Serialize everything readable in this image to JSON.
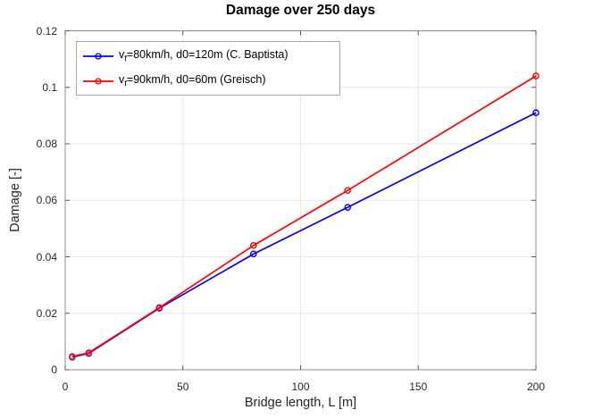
{
  "colors": {
    "background": "#ffffff",
    "grid": "#e8e8e8",
    "axis_box": "#8f8f8f",
    "tick": "#595959",
    "tick_label": "#262626",
    "blue_series": "#0000ff",
    "red_series": "#ff0000",
    "legend_border": "#a6a6a6"
  },
  "chart_data": {
    "type": "line",
    "title": "Damage over 250 days",
    "xlabel": "Bridge length, L [m]",
    "ylabel": "Damage [-]",
    "xlim": [
      0,
      200
    ],
    "ylim": [
      0,
      0.12
    ],
    "x_ticks": [
      0,
      50,
      100,
      150,
      200
    ],
    "x_tick_labels": [
      "0",
      "50",
      "100",
      "150",
      "200"
    ],
    "y_ticks": [
      0,
      0.02,
      0.04,
      0.06,
      0.08,
      0.1,
      0.12
    ],
    "y_tick_labels": [
      "0",
      "0.02",
      "0.04",
      "0.06",
      "0.08",
      "0.1",
      "0.12"
    ],
    "grid": true,
    "legend_position": "top-left",
    "x": [
      3,
      10,
      40,
      80,
      120,
      200
    ],
    "series": [
      {
        "name": "vf=80km/h, d0=120m (C. Baptista)",
        "color": "#0000ff",
        "marker": "o",
        "values": [
          0.0045,
          0.0058,
          0.0218,
          0.041,
          0.0575,
          0.091
        ]
      },
      {
        "name": "vf=90km/h, d0=60m (Greisch)",
        "color": "#ff0000",
        "marker": "o",
        "values": [
          0.0047,
          0.006,
          0.022,
          0.044,
          0.0635,
          0.104
        ]
      }
    ],
    "legend": [
      {
        "var": "v",
        "sub": "f",
        "rest": "=80km/h, d0=120m (C. Baptista)"
      },
      {
        "var": "v",
        "sub": "f",
        "rest": "=90km/h, d0=60m (Greisch)"
      }
    ]
  }
}
